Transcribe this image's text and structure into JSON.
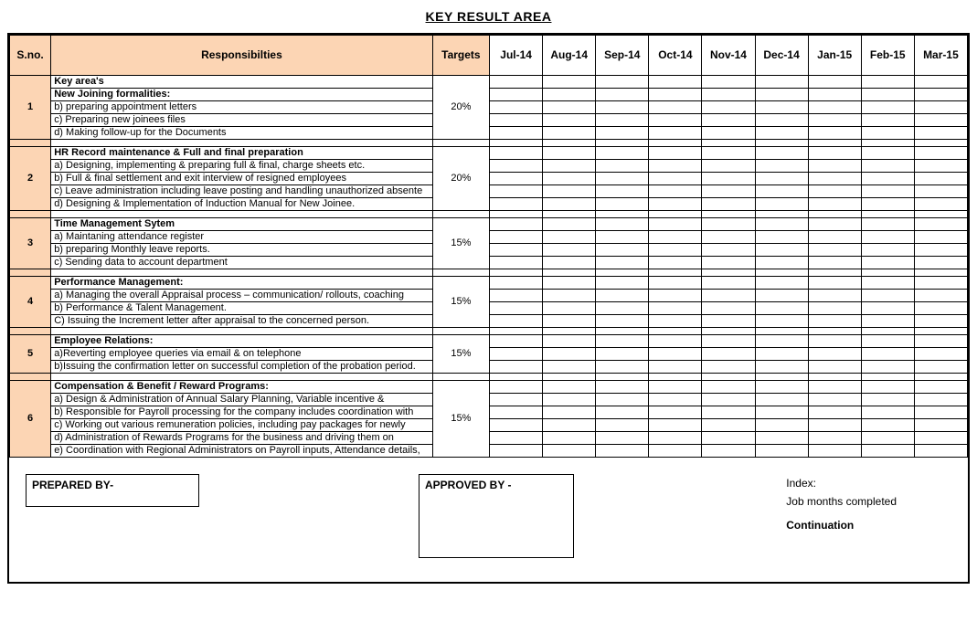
{
  "colors": {
    "header_bg": "#fcd5b4",
    "border": "#000000",
    "background": "#ffffff",
    "text": "#000000"
  },
  "title": "KEY RESULT AREA",
  "columns": {
    "sno": "S.no.",
    "resp": "Responsibilties",
    "targets": "Targets",
    "months": [
      "Jul-14",
      "Aug-14",
      "Sep-14",
      "Oct-14",
      "Nov-14",
      "Dec-14",
      "Jan-15",
      "Feb-15",
      "Mar-15"
    ]
  },
  "first_row_label": "Key area's",
  "sections": [
    {
      "sno": "1",
      "target": "20%",
      "heading": "New Joining formalities:",
      "items": [
        "b) preparing appointment letters",
        "c) Preparing new joinees files",
        "d) Making follow-up for the Documents"
      ]
    },
    {
      "sno": "2",
      "target": "20%",
      "heading": "HR Record maintenance & Full and final preparation",
      "items": [
        "a) Designing, implementing & preparing full & final, charge sheets etc.",
        "b) Full & final settlement and exit interview of resigned employees",
        "c) Leave administration including leave posting and handling unauthorized absente",
        "d) Designing & Implementation of Induction Manual for New Joinee."
      ]
    },
    {
      "sno": "3",
      "target": "15%",
      "heading": "Time Management Sytem",
      "items": [
        "a) Maintaning attendance register",
        "b) preparing Monthly leave reports.",
        "c) Sending data to account department"
      ]
    },
    {
      "sno": "4",
      "target": "15%",
      "heading": "Performance Management:",
      "items": [
        "a) Managing the overall Appraisal process – communication/ rollouts, coaching",
        "b) Performance & Talent Management.",
        "C) Issuing the Increment letter after appraisal to the concerned person."
      ]
    },
    {
      "sno": "5",
      "target": "15%",
      "heading": "Employee Relations:",
      "items": [
        "a)Reverting employee queries via email & on telephone",
        "b)Issuing the confirmation letter on successful completion of the probation period."
      ]
    },
    {
      "sno": "6",
      "target": "15%",
      "heading": "Compensation & Benefit / Reward Programs:",
      "items": [
        "a) Design & Administration of Annual Salary Planning, Variable incentive &",
        "b) Responsible for Payroll processing for the company includes coordination with",
        "c) Working out various remuneration policies, including pay packages for newly",
        "d) Administration of Rewards Programs for the business and driving them on",
        "e) Coordination with Regional Administrators on Payroll inputs, Attendance details,"
      ]
    }
  ],
  "footer": {
    "prepared_by": "PREPARED BY-",
    "approved_by": "APPROVED BY -",
    "index_label": "Index:",
    "index_sub": "Job months completed",
    "continuation": "Continuation"
  }
}
